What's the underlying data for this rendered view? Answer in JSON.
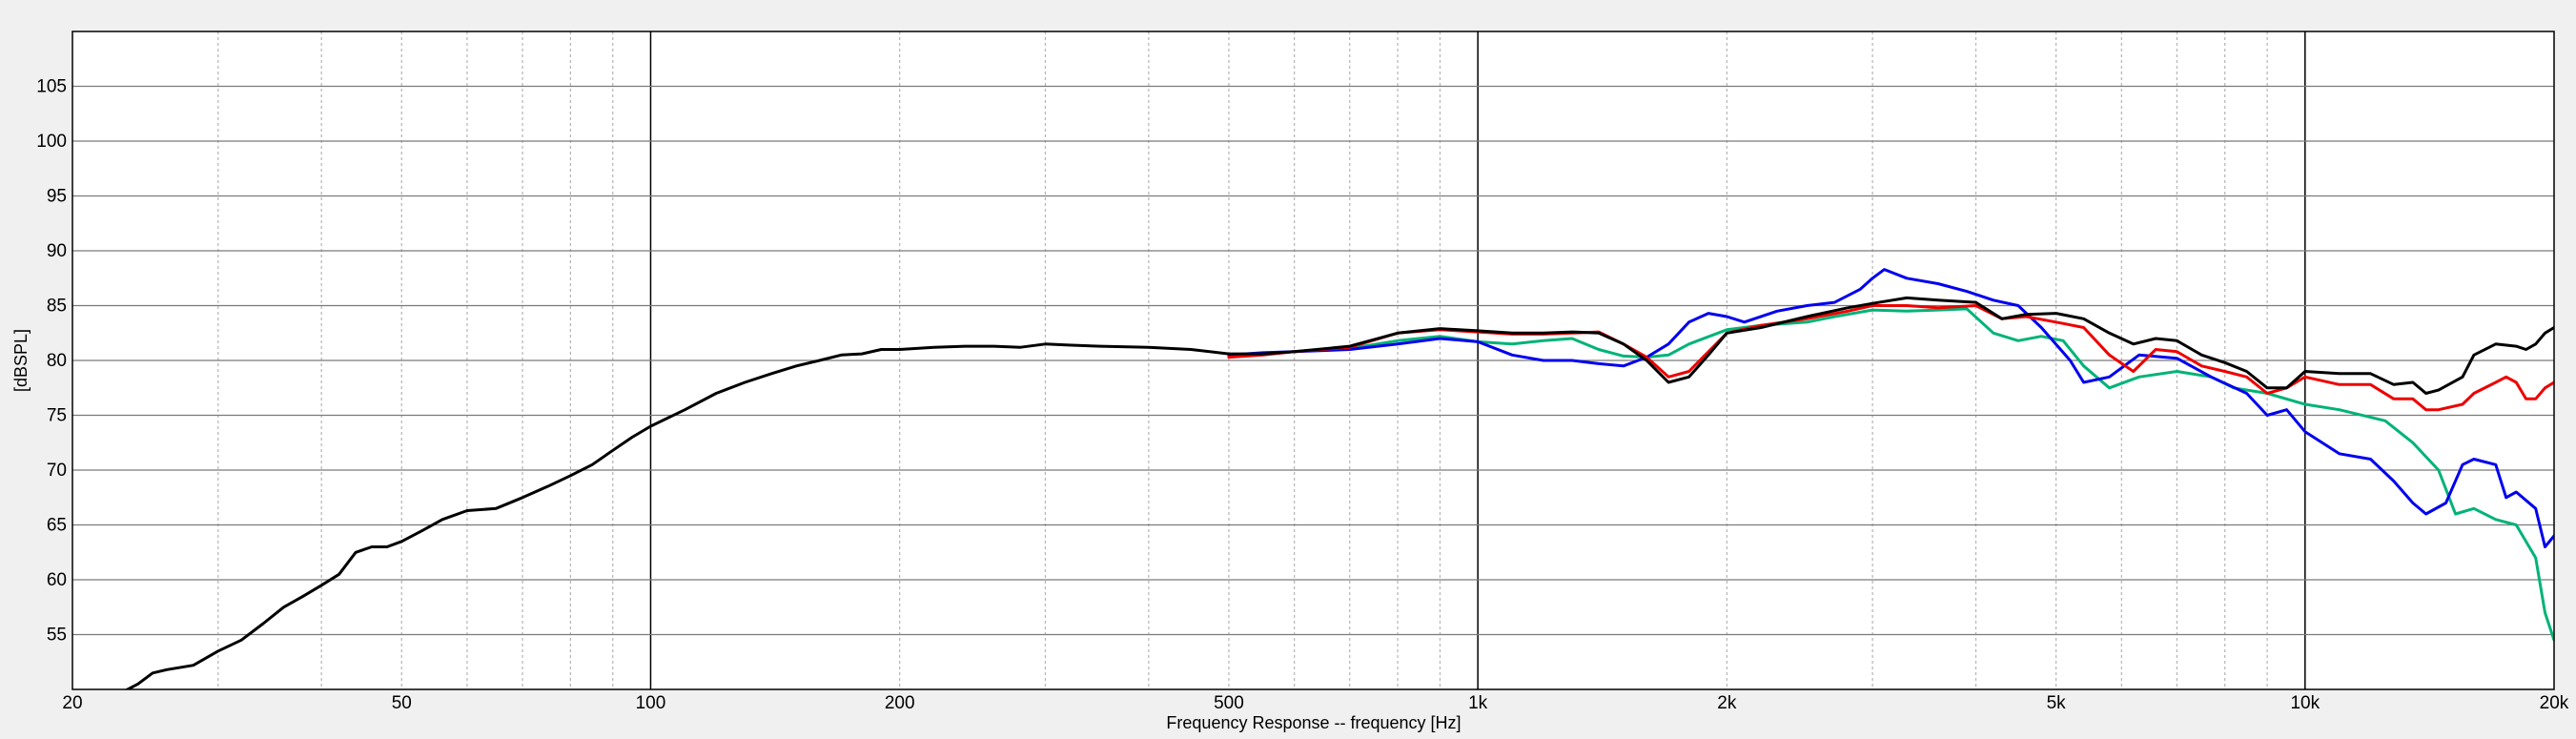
{
  "chart_data": {
    "type": "line",
    "xlabel": "Frequency Response -- frequency [Hz]",
    "ylabel": "[dBSPL]",
    "x_scale": "log",
    "xlim": [
      20,
      20000
    ],
    "ylim": [
      50,
      110
    ],
    "x_ticks": [
      {
        "value": 20,
        "label": "20"
      },
      {
        "value": 50,
        "label": "50"
      },
      {
        "value": 100,
        "label": "100"
      },
      {
        "value": 200,
        "label": "200"
      },
      {
        "value": 500,
        "label": "500"
      },
      {
        "value": 1000,
        "label": "1k"
      },
      {
        "value": 2000,
        "label": "2k"
      },
      {
        "value": 5000,
        "label": "5k"
      },
      {
        "value": 10000,
        "label": "10k"
      },
      {
        "value": 20000,
        "label": "20k"
      }
    ],
    "y_ticks": [
      55,
      60,
      65,
      70,
      75,
      80,
      85,
      90,
      95,
      100,
      105
    ],
    "grid": true,
    "legend": "none",
    "colors": {
      "background": "#ffffff",
      "page": "#f0f0f0",
      "grid_major": "#7a7a7a",
      "grid_minor": "#b4b4b4",
      "decade_line": "#000000"
    },
    "series": [
      {
        "color": "#00b377",
        "points": [
          [
            500,
            80.5
          ],
          [
            550,
            80.6
          ],
          [
            600,
            80.8
          ],
          [
            700,
            81.1
          ],
          [
            800,
            81.8
          ],
          [
            900,
            82.2
          ],
          [
            1000,
            81.7
          ],
          [
            1100,
            81.5
          ],
          [
            1200,
            81.8
          ],
          [
            1300,
            82.0
          ],
          [
            1400,
            81.0
          ],
          [
            1500,
            80.4
          ],
          [
            1600,
            80.3
          ],
          [
            1700,
            80.5
          ],
          [
            1800,
            81.5
          ],
          [
            2000,
            82.8
          ],
          [
            2200,
            83.2
          ],
          [
            2500,
            83.5
          ],
          [
            2700,
            84.0
          ],
          [
            3000,
            84.6
          ],
          [
            3300,
            84.5
          ],
          [
            3600,
            84.6
          ],
          [
            3900,
            84.7
          ],
          [
            4200,
            82.5
          ],
          [
            4500,
            81.8
          ],
          [
            4800,
            82.2
          ],
          [
            5100,
            81.8
          ],
          [
            5400,
            79.5
          ],
          [
            5800,
            77.5
          ],
          [
            6300,
            78.5
          ],
          [
            7000,
            79.0
          ],
          [
            7700,
            78.5
          ],
          [
            8200,
            77.5
          ],
          [
            9000,
            77.0
          ],
          [
            10000,
            76.0
          ],
          [
            11000,
            75.5
          ],
          [
            12500,
            74.5
          ],
          [
            13500,
            72.5
          ],
          [
            14500,
            70.0
          ],
          [
            15200,
            66.0
          ],
          [
            16000,
            66.5
          ],
          [
            17000,
            65.5
          ],
          [
            18000,
            65.0
          ],
          [
            19000,
            62.0
          ],
          [
            19500,
            57.0
          ],
          [
            20000,
            54.5
          ]
        ]
      },
      {
        "color": "#0000ee",
        "points": [
          [
            500,
            80.5
          ],
          [
            550,
            80.7
          ],
          [
            600,
            80.8
          ],
          [
            700,
            81.0
          ],
          [
            800,
            81.5
          ],
          [
            900,
            82.0
          ],
          [
            1000,
            81.7
          ],
          [
            1100,
            80.5
          ],
          [
            1200,
            80.0
          ],
          [
            1300,
            80.0
          ],
          [
            1400,
            79.7
          ],
          [
            1500,
            79.5
          ],
          [
            1600,
            80.3
          ],
          [
            1700,
            81.5
          ],
          [
            1800,
            83.5
          ],
          [
            1900,
            84.3
          ],
          [
            2000,
            84.0
          ],
          [
            2100,
            83.5
          ],
          [
            2300,
            84.5
          ],
          [
            2500,
            85.0
          ],
          [
            2700,
            85.3
          ],
          [
            2900,
            86.5
          ],
          [
            3000,
            87.5
          ],
          [
            3100,
            88.3
          ],
          [
            3300,
            87.5
          ],
          [
            3600,
            87.0
          ],
          [
            3900,
            86.3
          ],
          [
            4200,
            85.5
          ],
          [
            4500,
            85.0
          ],
          [
            4800,
            83.0
          ],
          [
            5200,
            80.0
          ],
          [
            5400,
            78.0
          ],
          [
            5800,
            78.5
          ],
          [
            6300,
            80.5
          ],
          [
            7000,
            80.2
          ],
          [
            7700,
            78.5
          ],
          [
            8500,
            77.0
          ],
          [
            9000,
            75.0
          ],
          [
            9500,
            75.5
          ],
          [
            10000,
            73.5
          ],
          [
            11000,
            71.5
          ],
          [
            12000,
            71.0
          ],
          [
            12800,
            69.0
          ],
          [
            13500,
            67.0
          ],
          [
            14000,
            66.0
          ],
          [
            14800,
            67.0
          ],
          [
            15500,
            70.5
          ],
          [
            16000,
            71.0
          ],
          [
            17000,
            70.5
          ],
          [
            17500,
            67.5
          ],
          [
            18000,
            68.0
          ],
          [
            19000,
            66.5
          ],
          [
            19500,
            63.0
          ],
          [
            20000,
            64.0
          ]
        ]
      },
      {
        "color": "#ee0000",
        "points": [
          [
            500,
            80.3
          ],
          [
            550,
            80.5
          ],
          [
            600,
            80.8
          ],
          [
            700,
            81.2
          ],
          [
            800,
            82.5
          ],
          [
            900,
            82.8
          ],
          [
            1000,
            82.6
          ],
          [
            1100,
            82.4
          ],
          [
            1200,
            82.4
          ],
          [
            1300,
            82.5
          ],
          [
            1400,
            82.6
          ],
          [
            1500,
            81.5
          ],
          [
            1600,
            80.3
          ],
          [
            1700,
            78.5
          ],
          [
            1800,
            79.0
          ],
          [
            1900,
            80.8
          ],
          [
            2000,
            82.5
          ],
          [
            2200,
            83.2
          ],
          [
            2500,
            83.8
          ],
          [
            2800,
            84.5
          ],
          [
            3000,
            85.0
          ],
          [
            3300,
            85.0
          ],
          [
            3600,
            84.8
          ],
          [
            4000,
            85.0
          ],
          [
            4300,
            83.8
          ],
          [
            4600,
            84.0
          ],
          [
            5000,
            83.5
          ],
          [
            5400,
            83.0
          ],
          [
            5800,
            80.5
          ],
          [
            6200,
            79.0
          ],
          [
            6600,
            81.0
          ],
          [
            7000,
            80.8
          ],
          [
            7500,
            79.5
          ],
          [
            8000,
            79.0
          ],
          [
            8500,
            78.5
          ],
          [
            9000,
            77.0
          ],
          [
            9500,
            77.5
          ],
          [
            10000,
            78.5
          ],
          [
            11000,
            77.8
          ],
          [
            12000,
            77.8
          ],
          [
            12800,
            76.5
          ],
          [
            13500,
            76.5
          ],
          [
            14000,
            75.5
          ],
          [
            14500,
            75.5
          ],
          [
            15500,
            76.0
          ],
          [
            16000,
            77.0
          ],
          [
            17000,
            78.0
          ],
          [
            17500,
            78.5
          ],
          [
            18000,
            78.0
          ],
          [
            18500,
            76.5
          ],
          [
            19000,
            76.5
          ],
          [
            19500,
            77.5
          ],
          [
            20000,
            78.0
          ]
        ]
      },
      {
        "color": "#000000",
        "points": [
          [
            20,
            47.0
          ],
          [
            22,
            49.0
          ],
          [
            24,
            50.5
          ],
          [
            25,
            51.5
          ],
          [
            26,
            51.8
          ],
          [
            28,
            52.2
          ],
          [
            30,
            53.5
          ],
          [
            32,
            54.5
          ],
          [
            34,
            56.0
          ],
          [
            36,
            57.5
          ],
          [
            38,
            58.5
          ],
          [
            40,
            59.5
          ],
          [
            42,
            60.5
          ],
          [
            44,
            62.5
          ],
          [
            46,
            63.0
          ],
          [
            48,
            63.0
          ],
          [
            50,
            63.5
          ],
          [
            53,
            64.5
          ],
          [
            56,
            65.5
          ],
          [
            60,
            66.3
          ],
          [
            65,
            66.5
          ],
          [
            70,
            67.5
          ],
          [
            75,
            68.5
          ],
          [
            80,
            69.5
          ],
          [
            85,
            70.5
          ],
          [
            90,
            71.8
          ],
          [
            95,
            73.0
          ],
          [
            100,
            74.0
          ],
          [
            110,
            75.5
          ],
          [
            120,
            77.0
          ],
          [
            130,
            78.0
          ],
          [
            140,
            78.8
          ],
          [
            150,
            79.5
          ],
          [
            160,
            80.0
          ],
          [
            170,
            80.5
          ],
          [
            180,
            80.6
          ],
          [
            190,
            81.0
          ],
          [
            200,
            81.0
          ],
          [
            220,
            81.2
          ],
          [
            240,
            81.3
          ],
          [
            260,
            81.3
          ],
          [
            280,
            81.2
          ],
          [
            300,
            81.5
          ],
          [
            320,
            81.4
          ],
          [
            350,
            81.3
          ],
          [
            400,
            81.2
          ],
          [
            450,
            81.0
          ],
          [
            500,
            80.6
          ],
          [
            550,
            80.6
          ],
          [
            600,
            80.8
          ],
          [
            700,
            81.3
          ],
          [
            800,
            82.5
          ],
          [
            900,
            82.9
          ],
          [
            1000,
            82.7
          ],
          [
            1100,
            82.5
          ],
          [
            1200,
            82.5
          ],
          [
            1300,
            82.6
          ],
          [
            1400,
            82.5
          ],
          [
            1500,
            81.5
          ],
          [
            1600,
            80.0
          ],
          [
            1700,
            78.0
          ],
          [
            1800,
            78.5
          ],
          [
            1900,
            80.5
          ],
          [
            2000,
            82.5
          ],
          [
            2200,
            83.0
          ],
          [
            2500,
            84.0
          ],
          [
            2800,
            84.8
          ],
          [
            3000,
            85.2
          ],
          [
            3300,
            85.7
          ],
          [
            3600,
            85.5
          ],
          [
            4000,
            85.3
          ],
          [
            4300,
            83.8
          ],
          [
            4600,
            84.2
          ],
          [
            5000,
            84.3
          ],
          [
            5400,
            83.8
          ],
          [
            5800,
            82.5
          ],
          [
            6200,
            81.5
          ],
          [
            6600,
            82.0
          ],
          [
            7000,
            81.8
          ],
          [
            7500,
            80.5
          ],
          [
            8000,
            79.8
          ],
          [
            8500,
            79.0
          ],
          [
            9000,
            77.5
          ],
          [
            9500,
            77.5
          ],
          [
            10000,
            79.0
          ],
          [
            11000,
            78.8
          ],
          [
            12000,
            78.8
          ],
          [
            12800,
            77.8
          ],
          [
            13500,
            78.0
          ],
          [
            14000,
            77.0
          ],
          [
            14500,
            77.3
          ],
          [
            15500,
            78.5
          ],
          [
            16000,
            80.5
          ],
          [
            17000,
            81.5
          ],
          [
            18000,
            81.3
          ],
          [
            18500,
            81.0
          ],
          [
            19000,
            81.5
          ],
          [
            19500,
            82.5
          ],
          [
            20000,
            83.0
          ]
        ]
      }
    ]
  }
}
